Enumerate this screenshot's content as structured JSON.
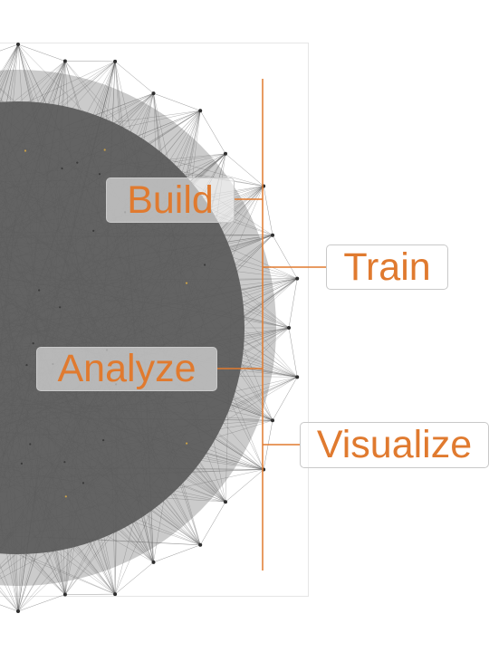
{
  "labels": {
    "build": "Build",
    "train": "Train",
    "analyze": "Analyze",
    "visualize": "Visualize"
  },
  "colors": {
    "accent": "#e07a2f",
    "edge": "#555555",
    "node": "#2e2e2e",
    "highlight_node": "#c9a14a",
    "label_border": "#c9c9c9"
  }
}
